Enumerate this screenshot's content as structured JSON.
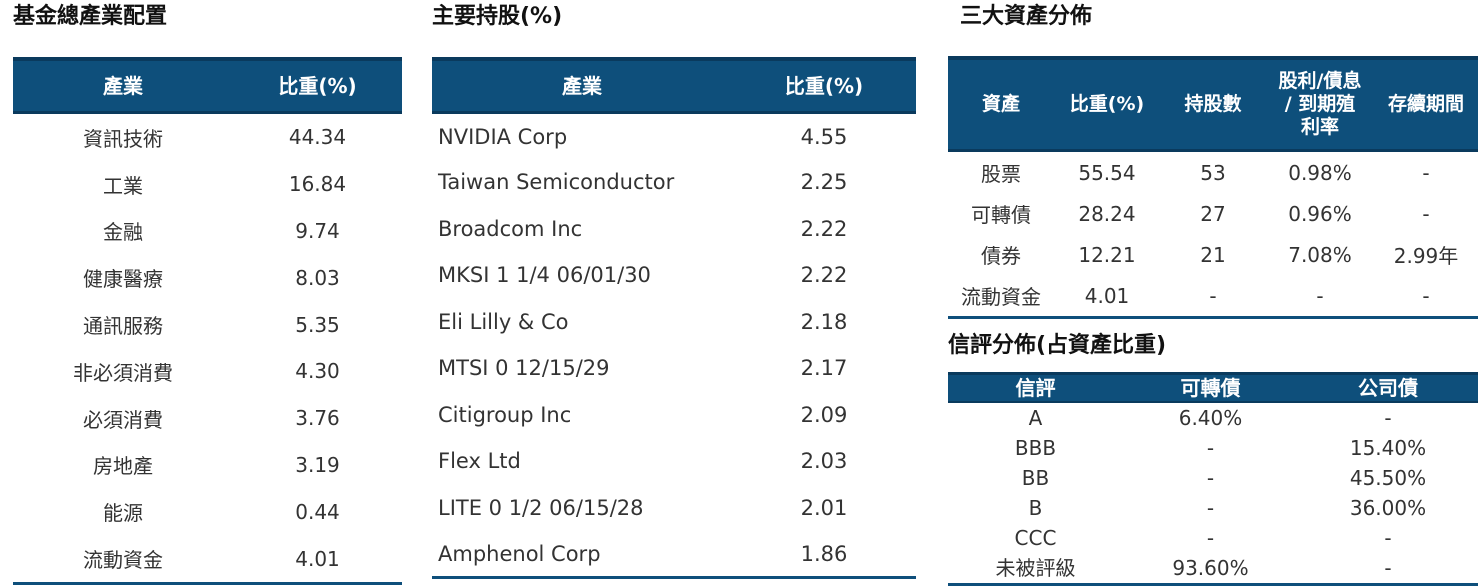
{
  "industry": {
    "title": "基金總產業配置",
    "headers": [
      "產業",
      "比重(%)"
    ],
    "rows": [
      [
        "資訊技術",
        "44.34"
      ],
      [
        "工業",
        "16.84"
      ],
      [
        "金融",
        "9.74"
      ],
      [
        "健康醫療",
        "8.03"
      ],
      [
        "通訊服務",
        "5.35"
      ],
      [
        "非必須消費",
        "4.30"
      ],
      [
        "必須消費",
        "3.76"
      ],
      [
        "房地產",
        "3.19"
      ],
      [
        "能源",
        "0.44"
      ],
      [
        "流動資金",
        "4.01"
      ]
    ]
  },
  "holdings": {
    "title": "主要持股(%)",
    "headers": [
      "產業",
      "比重(%)"
    ],
    "rows": [
      [
        "NVIDIA Corp",
        "4.55"
      ],
      [
        "Taiwan Semiconductor",
        "2.25"
      ],
      [
        "Broadcom Inc",
        "2.22"
      ],
      [
        "MKSI 1 1/4 06/01/30",
        "2.22"
      ],
      [
        "Eli Lilly & Co",
        "2.18"
      ],
      [
        "MTSI 0 12/15/29",
        "2.17"
      ],
      [
        "Citigroup Inc",
        "2.09"
      ],
      [
        "Flex Ltd",
        "2.03"
      ],
      [
        "LITE 0 1/2 06/15/28",
        "2.01"
      ],
      [
        "Amphenol Corp",
        "1.86"
      ]
    ]
  },
  "assets": {
    "title": "三大資產分佈",
    "headers": [
      "資產",
      "比重(%)",
      "持股數",
      "股利/債息\n/ 到期殖\n利率",
      "存續期間"
    ],
    "rows": [
      [
        "股票",
        "55.54",
        "53",
        "0.98%",
        "-"
      ],
      [
        "可轉債",
        "28.24",
        "27",
        "0.96%",
        "-"
      ],
      [
        "債券",
        "12.21",
        "21",
        "7.08%",
        "2.99年"
      ],
      [
        "流動資金",
        "4.01",
        "-",
        "-",
        "-"
      ]
    ]
  },
  "rating": {
    "title": "信評分佈(占資產比重)",
    "headers": [
      "信評",
      "可轉債",
      "公司債"
    ],
    "rows": [
      [
        "A",
        "6.40%",
        "-"
      ],
      [
        "BBB",
        "-",
        "15.40%"
      ],
      [
        "BB",
        "-",
        "45.50%"
      ],
      [
        "B",
        "-",
        "36.00%"
      ],
      [
        "CCC",
        "-",
        "-"
      ],
      [
        "未被評級",
        "93.60%",
        "-"
      ]
    ]
  }
}
